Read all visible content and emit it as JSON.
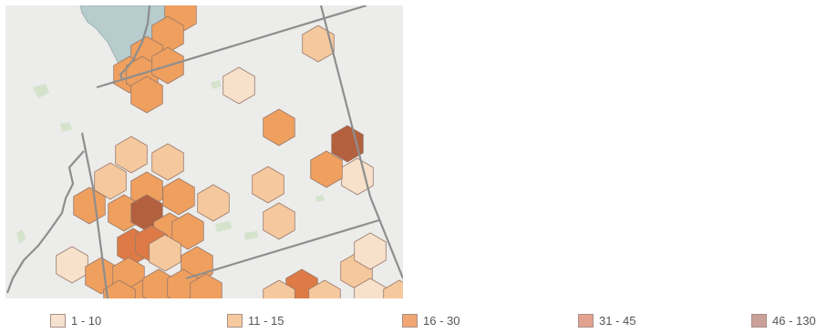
{
  "map": {
    "background_color": "#ececea",
    "lake_color": "#b6cccd",
    "boundary_color": "#8e8e8e",
    "hex_stroke_color": "#9a7a6c",
    "hexes": [
      {
        "bin": 3
      },
      {
        "bin": 3
      },
      {
        "bin": 3
      },
      {
        "bin": 3
      },
      {
        "bin": 3
      },
      {
        "bin": 3
      },
      {
        "bin": 3
      },
      {
        "bin": 1
      },
      {
        "bin": 2
      },
      {
        "bin": 3
      },
      {
        "bin": 5
      },
      {
        "bin": 1
      },
      {
        "bin": 2
      },
      {
        "bin": 2
      },
      {
        "bin": 2
      },
      {
        "bin": 2
      },
      {
        "bin": 2
      },
      {
        "bin": 3
      },
      {
        "bin": 3
      },
      {
        "bin": 3
      },
      {
        "bin": 5
      },
      {
        "bin": 3
      },
      {
        "bin": 2
      },
      {
        "bin": 3
      },
      {
        "bin": 3
      },
      {
        "bin": 3
      },
      {
        "bin": 4
      },
      {
        "bin": 4
      },
      {
        "bin": 2
      },
      {
        "bin": 3
      },
      {
        "bin": 1
      },
      {
        "bin": 3
      },
      {
        "bin": 3
      },
      {
        "bin": 3
      },
      {
        "bin": 3
      },
      {
        "bin": 3
      },
      {
        "bin": 3
      },
      {
        "bin": 3
      },
      {
        "bin": 4
      },
      {
        "bin": 2
      },
      {
        "bin": 1
      },
      {
        "bin": 2
      },
      {
        "bin": 2
      },
      {
        "bin": 1
      },
      {
        "bin": 2
      }
    ]
  },
  "legend": {
    "items": [
      {
        "label": "1 - 10",
        "color": "#f7e2cf"
      },
      {
        "label": "11 - 15",
        "color": "#f6c99f"
      },
      {
        "label": "16 - 30",
        "color": "#f0a774"
      },
      {
        "label": "31 - 45",
        "color": "#e3a28f"
      },
      {
        "label": "46 - 130",
        "color": "#c9a199"
      }
    ],
    "map_fill_colors": [
      "#f7e1cb",
      "#f5c89d",
      "#ef9f5e",
      "#dd7a45",
      "#b2603e"
    ]
  }
}
